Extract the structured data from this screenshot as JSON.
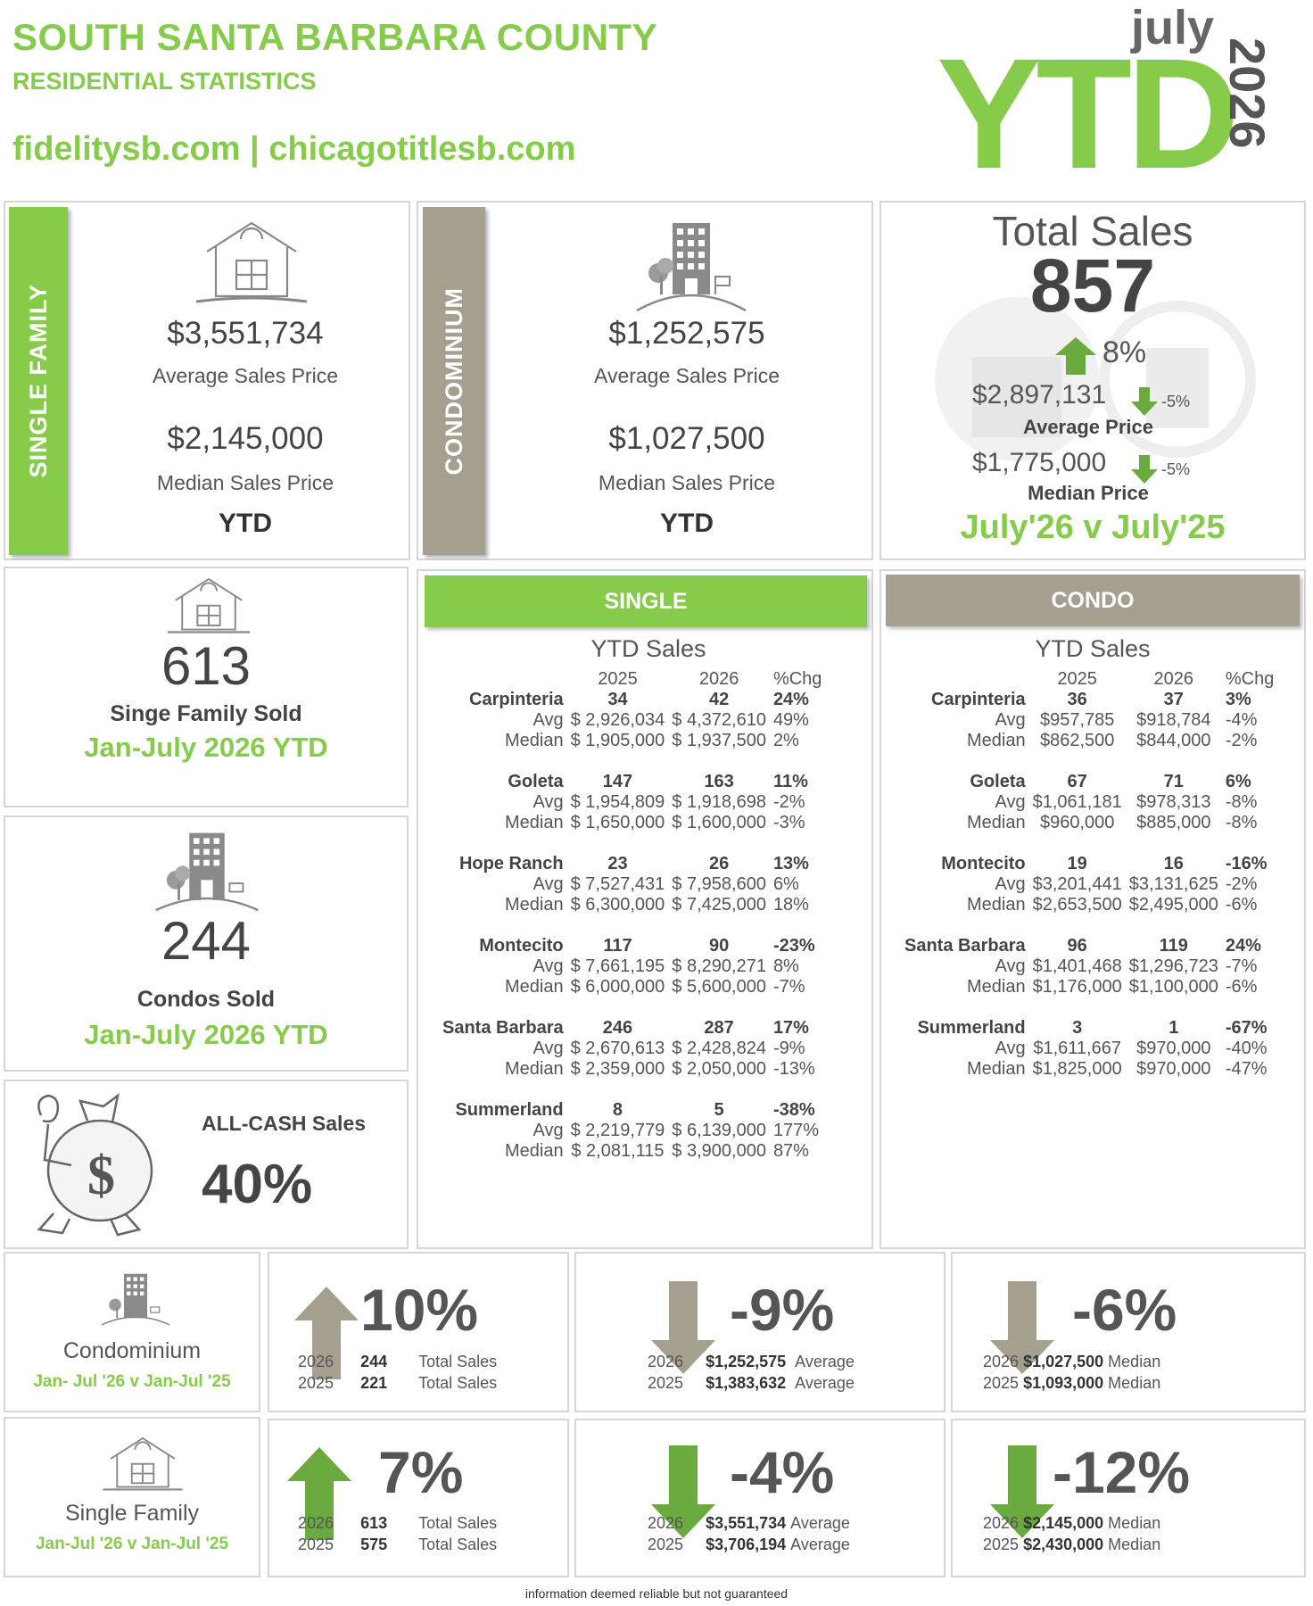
{
  "header": {
    "title": "SOUTH SANTA BARBARA COUNTY",
    "subtitle": "RESIDENTIAL STATISTICS",
    "links": "fidelitysb.com | chicagotitlesb.com",
    "month": "july",
    "ytd": "YTD",
    "year": "2026"
  },
  "single_family": {
    "tab": "SINGLE FAMILY",
    "avg_price": "$3,551,734",
    "avg_label": "Average Sales Price",
    "median_price": "$2,145,000",
    "median_label": "Median Sales Price",
    "period": "YTD"
  },
  "condominium": {
    "tab": "CONDOMINIUM",
    "avg_price": "$1,252,575",
    "avg_label": "Average Sales Price",
    "median_price": "$1,027,500",
    "median_label": "Median Sales Price",
    "period": "YTD"
  },
  "total_sales": {
    "title": "Total Sales",
    "count": "857",
    "change": "8%",
    "avg_price": "$2,897,131",
    "avg_change": "-5%",
    "avg_label": "Average Price",
    "median_price": "$1,775,000",
    "median_change": "-5%",
    "median_label": "Median Price",
    "comparison": "July'26 v July'25"
  },
  "sf_sold": {
    "count": "613",
    "label": "Singe Family Sold",
    "period": "Jan-July 2026 YTD"
  },
  "condo_sold": {
    "count": "244",
    "label": "Condos Sold",
    "period": "Jan-July 2026 YTD"
  },
  "all_cash": {
    "label": "ALL-CASH Sales",
    "value": "40%"
  },
  "single_table": {
    "header": "SINGLE",
    "title": "YTD Sales",
    "cols": [
      "2025",
      "2026",
      "%Chg"
    ],
    "rows_label_avg": "Avg",
    "rows_label_median": "Median",
    "areas": [
      {
        "name": "Carpinteria",
        "c2025": "34",
        "c2026": "42",
        "chg": "24%",
        "avg2025": "$ 2,926,034",
        "avg2026": "$ 4,372,610",
        "avgchg": "49%",
        "med2025": "$ 1,905,000",
        "med2026": "$ 1,937,500",
        "medchg": "2%"
      },
      {
        "name": "Goleta",
        "c2025": "147",
        "c2026": "163",
        "chg": "11%",
        "avg2025": "$ 1,954,809",
        "avg2026": "$ 1,918,698",
        "avgchg": "-2%",
        "med2025": "$ 1,650,000",
        "med2026": "$ 1,600,000",
        "medchg": "-3%"
      },
      {
        "name": "Hope Ranch",
        "c2025": "23",
        "c2026": "26",
        "chg": "13%",
        "avg2025": "$ 7,527,431",
        "avg2026": "$ 7,958,600",
        "avgchg": "6%",
        "med2025": "$ 6,300,000",
        "med2026": "$ 7,425,000",
        "medchg": "18%"
      },
      {
        "name": "Montecito",
        "c2025": "117",
        "c2026": "90",
        "chg": "-23%",
        "avg2025": "$ 7,661,195",
        "avg2026": "$ 8,290,271",
        "avgchg": "8%",
        "med2025": "$ 6,000,000",
        "med2026": "$ 5,600,000",
        "medchg": "-7%"
      },
      {
        "name": "Santa Barbara",
        "c2025": "246",
        "c2026": "287",
        "chg": "17%",
        "avg2025": "$ 2,670,613",
        "avg2026": "$ 2,428,824",
        "avgchg": "-9%",
        "med2025": "$ 2,359,000",
        "med2026": "$ 2,050,000",
        "medchg": "-13%"
      },
      {
        "name": "Summerland",
        "c2025": "8",
        "c2026": "5",
        "chg": "-38%",
        "avg2025": "$ 2,219,779",
        "avg2026": "$ 6,139,000",
        "avgchg": "177%",
        "med2025": "$ 2,081,115",
        "med2026": "$ 3,900,000",
        "medchg": "87%"
      }
    ]
  },
  "condo_table": {
    "header": "CONDO",
    "title": "YTD Sales",
    "cols": [
      "2025",
      "2026",
      "%Chg"
    ],
    "rows_label_avg": "Avg",
    "rows_label_median": "Median",
    "areas": [
      {
        "name": "Carpinteria",
        "c2025": "36",
        "c2026": "37",
        "chg": "3%",
        "avg2025": "$957,785",
        "avg2026": "$918,784",
        "avgchg": "-4%",
        "med2025": "$862,500",
        "med2026": "$844,000",
        "medchg": "-2%"
      },
      {
        "name": "Goleta",
        "c2025": "67",
        "c2026": "71",
        "chg": "6%",
        "avg2025": "$1,061,181",
        "avg2026": "$978,313",
        "avgchg": "-8%",
        "med2025": "$960,000",
        "med2026": "$885,000",
        "medchg": "-8%"
      },
      {
        "name": "Montecito",
        "c2025": "19",
        "c2026": "16",
        "chg": "-16%",
        "avg2025": "$3,201,441",
        "avg2026": "$3,131,625",
        "avgchg": "-2%",
        "med2025": "$2,653,500",
        "med2026": "$2,495,000",
        "medchg": "-6%"
      },
      {
        "name": "Santa Barbara",
        "c2025": "96",
        "c2026": "119",
        "chg": "24%",
        "avg2025": "$1,401,468",
        "avg2026": "$1,296,723",
        "avgchg": "-7%",
        "med2025": "$1,176,000",
        "med2026": "$1,100,000",
        "medchg": "-6%"
      },
      {
        "name": "Summerland",
        "c2025": "3",
        "c2026": "1",
        "chg": "-67%",
        "avg2025": "$1,611,667",
        "avg2026": "$970,000",
        "avgchg": "-40%",
        "med2025": "$1,825,000",
        "med2026": "$970,000",
        "medchg": "-47%"
      }
    ]
  },
  "bottom": {
    "condo": {
      "label": "Condominium",
      "period": "Jan- Jul '26 v Jan-Jul '25",
      "sales": {
        "pct": "10%",
        "y1": "2026",
        "v1": "244",
        "l1": "Total Sales",
        "y2": "2025",
        "v2": "221",
        "l2": "Total Sales"
      },
      "avg": {
        "pct": "-9%",
        "y1": "2026",
        "v1": "$1,252,575",
        "l1": "Average",
        "y2": "2025",
        "v2": "$1,383,632",
        "l2": "Average"
      },
      "median": {
        "pct": "-6%",
        "y1": "2026",
        "v1": "$1,027,500",
        "l1": "Median",
        "y2": "2025",
        "v2": "$1,093,000",
        "l2": "Median"
      }
    },
    "single": {
      "label": "Single Family",
      "period": "Jan-Jul '26 v Jan-Jul '25",
      "sales": {
        "pct": "7%",
        "y1": "2026",
        "v1": "613",
        "l1": "Total Sales",
        "y2": "2025",
        "v2": "575",
        "l2": "Total Sales"
      },
      "avg": {
        "pct": "-4%",
        "y1": "2026",
        "v1": "$3,551,734",
        "l1": "Average",
        "y2": "2025",
        "v2": "$3,706,194",
        "l2": "Average"
      },
      "median": {
        "pct": "-12%",
        "y1": "2026",
        "v1": "$2,145,000",
        "l1": "Median",
        "y2": "2025",
        "v2": "$2,430,000",
        "l2": "Median"
      }
    }
  },
  "footer": "information deemed reliable but not guaranteed",
  "colors": {
    "green": "#86cc4a",
    "taupe": "#a59f8f",
    "gray": "#555555"
  }
}
